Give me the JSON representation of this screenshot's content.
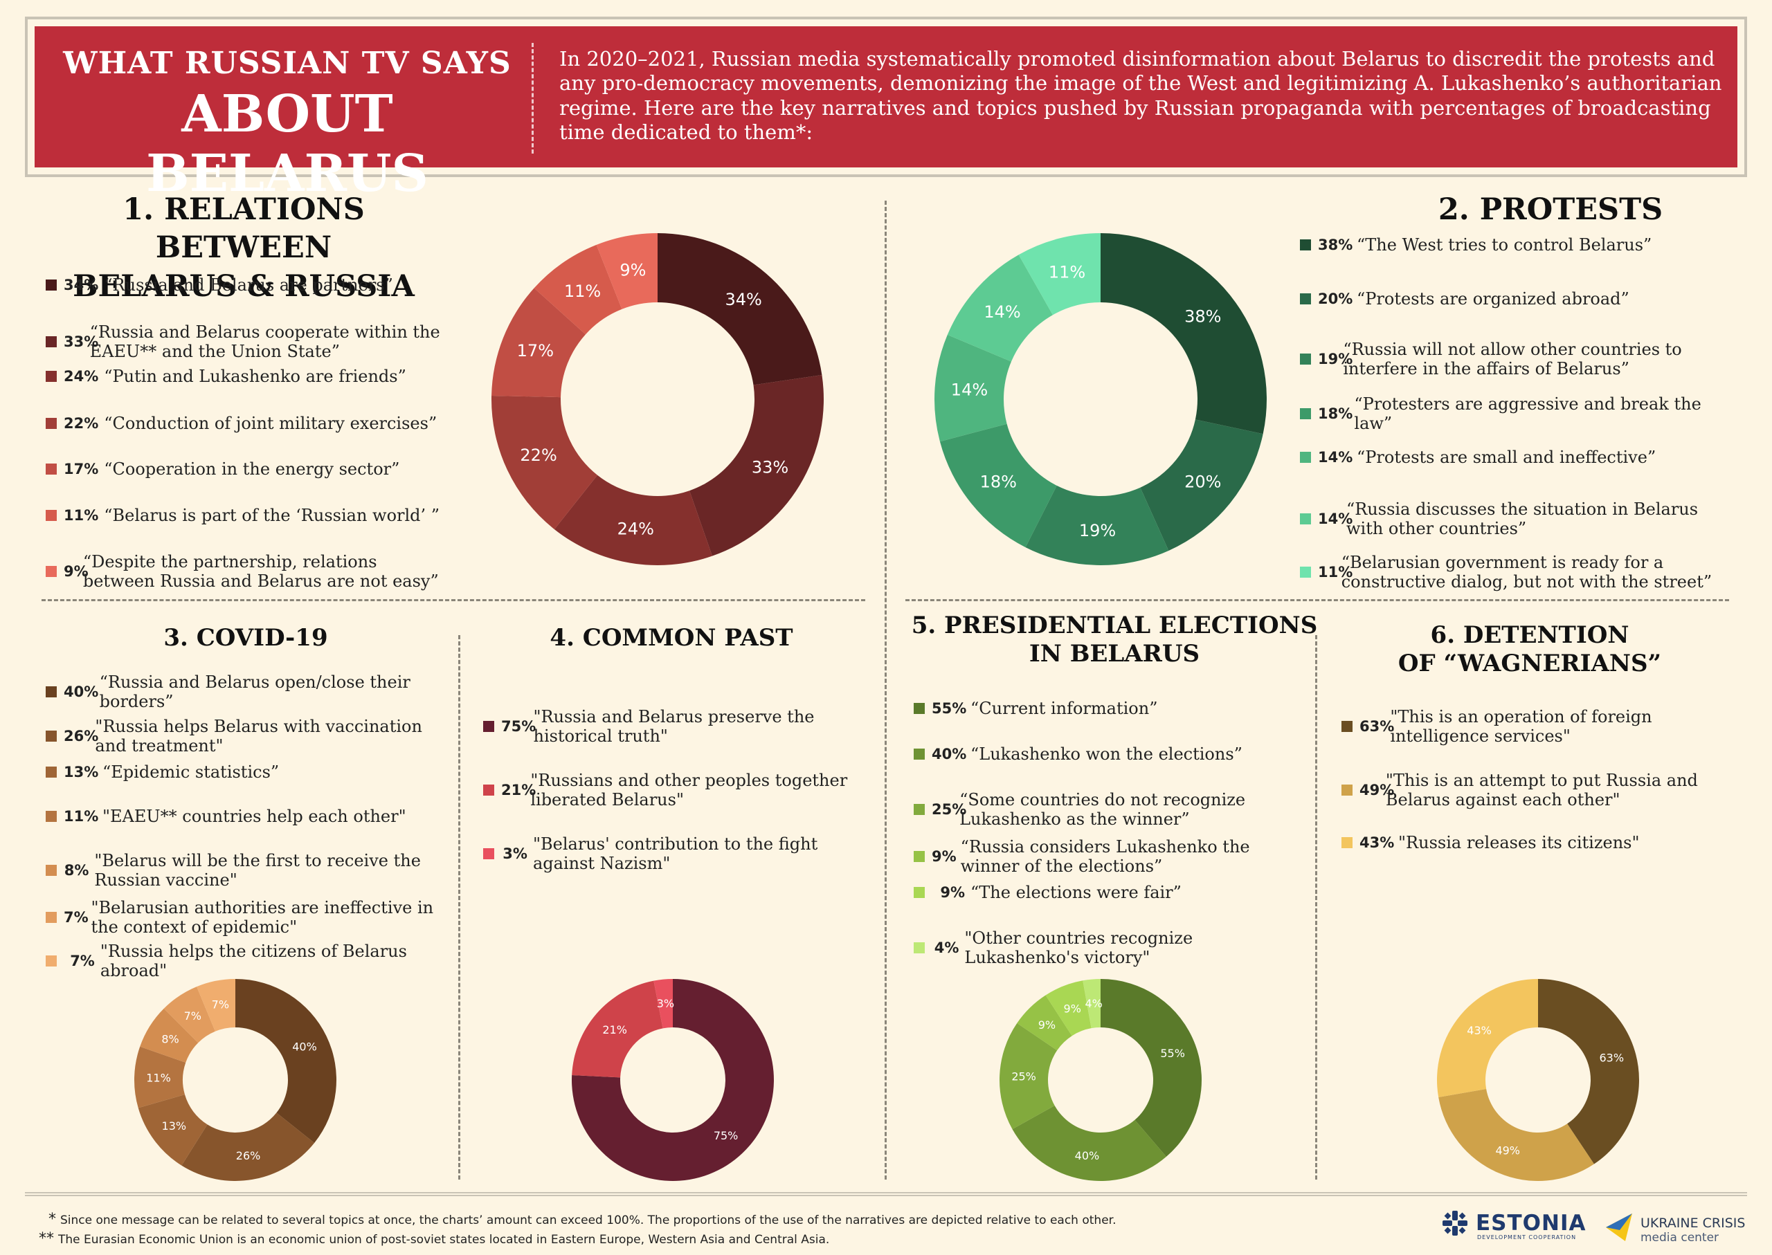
{
  "header": {
    "title_line1": "WHAT RUSSIAN TV SAYS",
    "title_line2": "ABOUT BELARUS",
    "intro": "In 2020–2021, Russian media systematically promoted disinformation about Belarus to discredit the protests and any pro-democracy movements, demonizing the image of the West and legitimizing A. Lukashenko’s authoritarian regime. Here are the key narratives and topics pushed by Russian propaganda with percentages of broadcasting time dedicated to them*:"
  },
  "sections": {
    "s1": {
      "title_line1": "1. RELATIONS BETWEEN",
      "title_line2": "BELARUS & RUSSIA"
    },
    "s2": {
      "title": "2. PROTESTS"
    },
    "s3": {
      "title": "3. COVID-19"
    },
    "s4": {
      "title": "4. COMMON PAST"
    },
    "s5": {
      "title_line1": "5. PRESIDENTIAL ELECTIONS",
      "title_line2": "IN BELARUS"
    },
    "s6": {
      "title_line1": "6. DETENTION",
      "title_line2": "OF “WAGNERIANS”"
    }
  },
  "chart_data": [
    {
      "type": "pie",
      "title": "1. RELATIONS BETWEEN BELARUS & RUSSIA",
      "categories": [
        "“Russia and Belarus are partners”",
        "“Russia and Belarus cooperate within the EAEU** and the Union State”",
        "“Putin and Lukashenko are friends”",
        "“Conduction of joint military exercises”",
        "“Cooperation in the energy sector”",
        "“Belarus is part of the ‘Russian world’ ”",
        "“Despite the partnership, relations between Russia and Belarus are not easy”"
      ],
      "values": [
        34,
        33,
        24,
        22,
        17,
        11,
        9
      ],
      "labels": [
        "34%",
        "33%",
        "24%",
        "22%",
        "17%",
        "11%",
        "9%"
      ],
      "colors": [
        "#4A1A1A",
        "#6A2626",
        "#85302D",
        "#A13E37",
        "#C14E44",
        "#D65B4C",
        "#E86A5B"
      ]
    },
    {
      "type": "pie",
      "title": "2. PROTESTS",
      "categories": [
        "“The West tries to control Belarus”",
        "“Protests are organized abroad”",
        "“Russia will not allow other countries to interfere in the affairs of Belarus”",
        "“Protesters are aggressive and break the law”",
        "“Protests are small and ineffective”",
        "“Russia discusses the situation in Belarus with other countries”",
        "“Belarusian government is ready for a constructive dialog, but not with the street”"
      ],
      "values": [
        38,
        20,
        19,
        18,
        14,
        14,
        11
      ],
      "labels": [
        "38%",
        "20%",
        "19%",
        "18%",
        "14%",
        "14%",
        "11%"
      ],
      "colors": [
        "#1F4D33",
        "#2A6A49",
        "#338259",
        "#3D9A69",
        "#4FB57F",
        "#5DCB93",
        "#6FE3AD"
      ]
    },
    {
      "type": "pie",
      "title": "3. COVID-19",
      "categories": [
        "“Russia and Belarus open/close their borders”",
        "\"Russia helps Belarus with vaccination and treatment\"",
        "“Epidemic statistics”",
        "\"EAEU** countries help each other\"",
        "\"Belarus will be the first to receive the Russian vaccine\"",
        "\"Belarusian authorities are ineffective in the context of epidemic\"",
        "\"Russia helps the citizens of Belarus abroad\""
      ],
      "values": [
        40,
        26,
        13,
        11,
        8,
        7,
        7
      ],
      "labels": [
        "40%",
        "26%",
        "13%",
        "11%",
        "8%",
        "7%",
        "7%"
      ],
      "colors": [
        "#6A4120",
        "#87552C",
        "#9F6536",
        "#B47440",
        "#D38D50",
        "#E29C5E",
        "#F0AD6E"
      ]
    },
    {
      "type": "pie",
      "title": "4. COMMON PAST",
      "categories": [
        "\"Russia and Belarus preserve the historical truth\"",
        "\"Russians and other peoples together liberated Belarus\"",
        "\"Belarus' contribution to the fight against Nazism\""
      ],
      "values": [
        75,
        21,
        3
      ],
      "labels": [
        "75%",
        "21%",
        "3%"
      ],
      "colors": [
        "#651F30",
        "#CF434A",
        "#E9505E"
      ]
    },
    {
      "type": "pie",
      "title": "5. PRESIDENTIAL ELECTIONS IN BELARUS",
      "categories": [
        "“Current information”",
        "“Lukashenko won the elections”",
        "“Some countries do not recognize Lukashenko as the winner”",
        "“Russia considers Lukashenko the winner of the elections”",
        "“The elections were fair”",
        "\"Other countries recognize Lukashenko's victory\""
      ],
      "values": [
        55,
        40,
        25,
        9,
        9,
        4
      ],
      "labels": [
        "55%",
        "40%",
        "25%",
        "9%",
        "9%",
        "4%"
      ],
      "colors": [
        "#5A7A2A",
        "#6E9233",
        "#82AA3D",
        "#96C246",
        "#A9D753",
        "#BDE875"
      ]
    },
    {
      "type": "pie",
      "title": "6. DETENTION OF “WAGNERIANS”",
      "categories": [
        "\"This is an operation of foreign intelligence services\"",
        "\"This is an attempt to put Russia and Belarus against each other\"",
        "\"Russia releases its citizens\""
      ],
      "values": [
        63,
        49,
        43
      ],
      "labels": [
        "63%",
        "49%",
        "43%"
      ],
      "colors": [
        "#6A4E22",
        "#CFA24A",
        "#F3C55E"
      ]
    }
  ],
  "footer": {
    "note1_mark": "*",
    "note1": "Since one message can be related to several topics at once, the charts’ amount can exceed 100%. The proportions of the use of the narratives are depicted relative to each other.",
    "note2_mark": "**",
    "note2": "The Eurasian Economic Union is an economic union of post-soviet states located in Eastern Europe, Western Asia and Central Asia.",
    "logo1_name": "ESTONIA",
    "logo1_sub": "DEVELOPMENT COOPERATION",
    "logo2_name": "UKRAINE CRISIS",
    "logo2_sub": "media center"
  }
}
